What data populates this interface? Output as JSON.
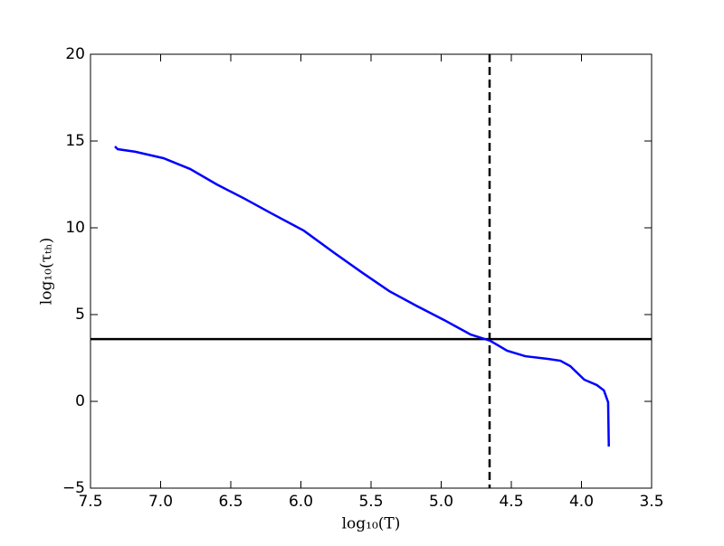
{
  "chart_data": {
    "type": "line",
    "xlabel": "log₁₀(T)",
    "ylabel": "log₁₀(τₜₕ)",
    "xlim": [
      7.5,
      3.5
    ],
    "xticks": [
      7.5,
      {
        "value": 7,
        "label": "7.0"
      },
      6.5,
      {
        "value": 6,
        "label": "6.0"
      },
      5.5,
      {
        "value": 5,
        "label": "5.0"
      },
      4.5,
      {
        "value": 4,
        "label": "4.0"
      },
      3.5
    ],
    "ylim": [
      -5,
      20
    ],
    "yticks": [
      {
        "value": -5,
        "label": "−5"
      },
      0,
      5,
      10,
      15,
      20
    ],
    "series": [
      {
        "color": "#0000ff",
        "x": [
          7.326,
          7.306,
          7.18,
          6.98,
          6.79,
          6.6,
          6.4,
          6.21,
          5.98,
          5.76,
          5.56,
          5.37,
          5.18,
          4.98,
          4.79,
          4.65,
          4.53,
          4.4,
          4.24,
          4.15,
          4.08,
          3.98,
          3.89,
          3.84,
          3.81,
          3.805
        ],
        "values": [
          14.69,
          14.53,
          14.38,
          14.01,
          13.39,
          12.5,
          11.67,
          10.83,
          9.84,
          8.54,
          7.4,
          6.35,
          5.52,
          4.69,
          3.85,
          3.49,
          2.92,
          2.6,
          2.45,
          2.34,
          2.03,
          1.25,
          0.94,
          0.63,
          -0.05,
          -2.6
        ]
      }
    ],
    "reference_lines": [
      {
        "axis": "y",
        "value": 3.59,
        "color": "#000000",
        "style": "solid"
      },
      {
        "axis": "x",
        "value": 4.655,
        "color": "#000000",
        "style": "dashed"
      }
    ]
  }
}
